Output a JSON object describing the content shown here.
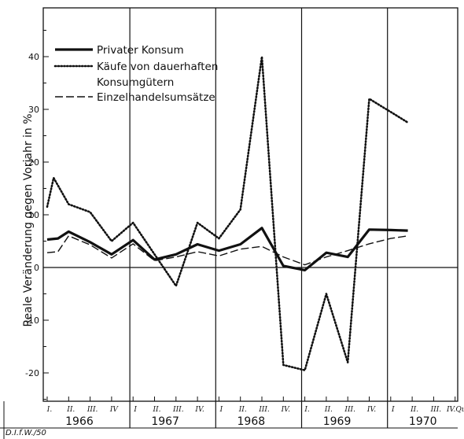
{
  "chart_data": {
    "type": "line",
    "ylabel": "Reale Veränderung gegen Vorjahr in %",
    "ylim": [
      -25,
      47
    ],
    "yticks": [
      -20,
      -10,
      0,
      10,
      20,
      30,
      40
    ],
    "ytick_labels": [
      "-20",
      "-10",
      "0",
      "10",
      "20",
      "30",
      "40"
    ],
    "years": [
      "1966",
      "1967",
      "1968",
      "1969",
      "1970"
    ],
    "quarter_labels": [
      [
        "I.",
        "II.",
        "III.",
        "IV"
      ],
      [
        "I",
        "II.",
        "III.",
        "IV."
      ],
      [
        "I",
        "II.",
        "III.",
        "IV."
      ],
      [
        "I.",
        "II.",
        "III.",
        "IV."
      ],
      [
        "I",
        "II.",
        "III.",
        "IV.Qu."
      ]
    ],
    "credit": "D.I.f.W./50",
    "legend": "top-left",
    "series": [
      {
        "name": "Privater Konsum",
        "style": "solid",
        "x": [
          0.0,
          0.5,
          1.0,
          2.0,
          3.0,
          4.0,
          5.0,
          6.0,
          7.0,
          8.0,
          9.0,
          10.0,
          11.0,
          12.0,
          13.0,
          14.0,
          15.0,
          16.0,
          16.8
        ],
        "values": [
          5.3,
          5.5,
          6.8,
          4.8,
          2.5,
          5.2,
          1.5,
          2.5,
          4.4,
          3.2,
          4.4,
          7.5,
          0.3,
          -0.5,
          2.8,
          2.0,
          7.2,
          7.1,
          7.0
        ]
      },
      {
        "name": "Käufe von dauerhaften Konsumgütern",
        "style": "dotted",
        "x": [
          0.0,
          0.3,
          1.0,
          2.0,
          3.0,
          4.0,
          5.0,
          6.0,
          7.0,
          8.0,
          9.0,
          10.0,
          11.0,
          12.0,
          13.0,
          14.0,
          15.0,
          16.0,
          16.8
        ],
        "values": [
          11.5,
          17.0,
          12.0,
          10.5,
          5.0,
          8.5,
          2.5,
          -3.5,
          8.5,
          5.5,
          11.0,
          40.0,
          -18.5,
          -19.5,
          -5.0,
          -18.0,
          32.0,
          29.5,
          27.5
        ]
      },
      {
        "name": "Einzelhandelsumsätze",
        "style": "dashed",
        "x": [
          0.0,
          0.5,
          1.0,
          2.0,
          3.0,
          4.0,
          5.0,
          6.0,
          7.0,
          8.0,
          9.0,
          10.0,
          11.0,
          12.0,
          13.0,
          14.0,
          15.0,
          16.0,
          16.8
        ],
        "values": [
          2.8,
          3.0,
          6.0,
          4.3,
          1.8,
          4.5,
          1.3,
          2.0,
          3.0,
          2.2,
          3.5,
          4.0,
          2.0,
          0.5,
          2.0,
          3.2,
          4.5,
          5.5,
          6.0
        ]
      }
    ]
  }
}
